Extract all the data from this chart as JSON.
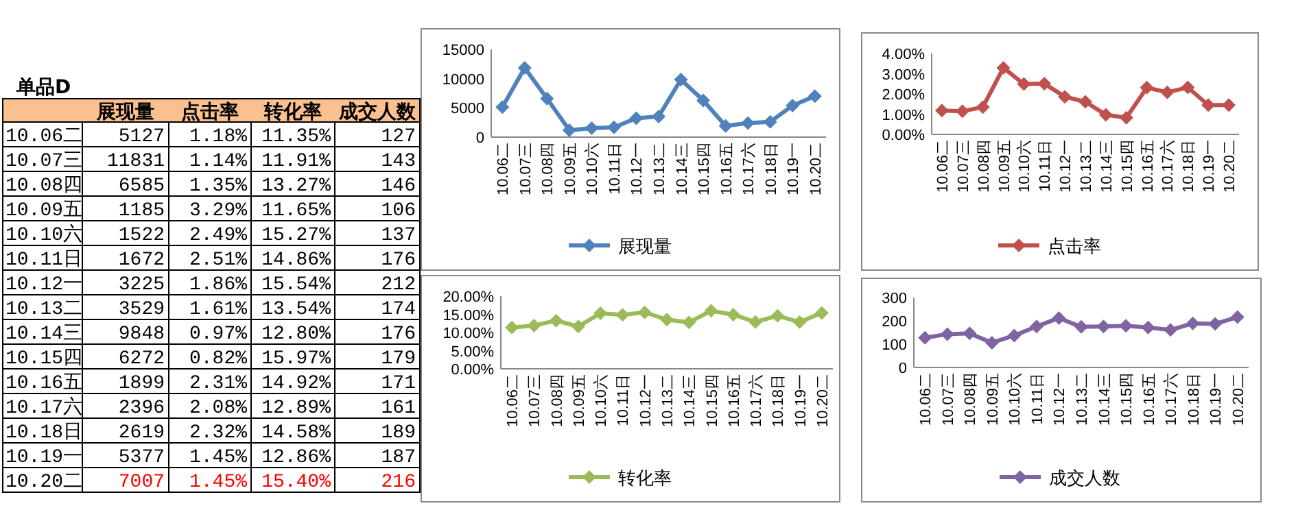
{
  "chart_data": [
    {
      "type": "heatmap",
      "title": "单品D",
      "categories": [
        "展现量",
        "点击率",
        "转化率",
        "成交人数"
      ],
      "y_categories": [
        "10.06二",
        "10.07三",
        "10.08四",
        "10.09五",
        "10.10六",
        "10.11日",
        "10.12一",
        "10.13二",
        "10.14三",
        "10.15四",
        "10.16五",
        "10.17六",
        "10.18日",
        "10.19一",
        "10.20二"
      ],
      "cells": [
        [
          null,
          null,
          null,
          null
        ],
        [
          null,
          null,
          null,
          null
        ],
        [
          null,
          null,
          null,
          null
        ],
        [
          null,
          null,
          null,
          null
        ],
        [
          null,
          null,
          null,
          null
        ],
        [
          null,
          null,
          null,
          null
        ],
        [
          null,
          null,
          null,
          null
        ],
        [
          null,
          null,
          null,
          null
        ],
        [
          null,
          null,
          null,
          null
        ],
        [
          null,
          null,
          null,
          null
        ],
        [
          null,
          null,
          null,
          null
        ],
        [
          null,
          null,
          null,
          null
        ],
        [
          null,
          null,
          null,
          null
        ],
        [
          null,
          null,
          null,
          null
        ],
        [
          null,
          null,
          null,
          null
        ]
      ],
      "cell_labels": [
        [
          "5127",
          "1.18%",
          "11.35%",
          "127"
        ],
        [
          "11831",
          "1.14%",
          "11.91%",
          "143"
        ],
        [
          "6585",
          "1.35%",
          "13.27%",
          "146"
        ],
        [
          "1185",
          "3.29%",
          "11.65%",
          "106"
        ],
        [
          "1522",
          "2.49%",
          "15.27%",
          "137"
        ],
        [
          "1672",
          "2.51%",
          "14.86%",
          "176"
        ],
        [
          "3225",
          "1.86%",
          "15.54%",
          "212"
        ],
        [
          "3529",
          "1.61%",
          "13.54%",
          "174"
        ],
        [
          "9848",
          "0.97%",
          "12.80%",
          "176"
        ],
        [
          "6272",
          "0.82%",
          "15.97%",
          "179"
        ],
        [
          "1899",
          "2.31%",
          "14.92%",
          "171"
        ],
        [
          "2396",
          "2.08%",
          "12.89%",
          "161"
        ],
        [
          "2619",
          "2.32%",
          "14.58%",
          "189"
        ],
        [
          "5377",
          "1.45%",
          "12.86%",
          "187"
        ],
        [
          "7007",
          "1.45%",
          "15.40%",
          "216"
        ]
      ]
    },
    {
      "type": "line",
      "categories": [
        "10.06二",
        "10.07三",
        "10.08四",
        "10.09五",
        "10.10六",
        "10.11日",
        "10.12一",
        "10.13二",
        "10.14三",
        "10.15四",
        "10.16五",
        "10.17六",
        "10.18日",
        "10.19一",
        "10.20二"
      ],
      "ylim": [
        0,
        15000
      ],
      "yticks": [
        0,
        5000,
        10000,
        15000
      ],
      "marker": "diamond",
      "legend": "bottom",
      "series": [
        {
          "name": "展现量",
          "color": "#4f81bd",
          "values": [
            5127,
            11831,
            6585,
            1185,
            1522,
            1672,
            3225,
            3529,
            9848,
            6272,
            1899,
            2396,
            2619,
            5377,
            7007
          ]
        }
      ]
    },
    {
      "type": "line",
      "categories": [
        "10.06二",
        "10.07三",
        "10.08四",
        "10.09五",
        "10.10六",
        "10.11日",
        "10.12一",
        "10.13二",
        "10.14三",
        "10.15四",
        "10.16五",
        "10.17六",
        "10.18日",
        "10.19一",
        "10.20二"
      ],
      "ylim": [
        0,
        4
      ],
      "yticks": [
        {
          "value": 0,
          "label": "0.00%"
        },
        {
          "value": 1,
          "label": "1.00%"
        },
        {
          "value": 2,
          "label": "2.00%"
        },
        {
          "value": 3,
          "label": "3.00%"
        },
        {
          "value": 4,
          "label": "4.00%"
        }
      ],
      "marker": "diamond",
      "legend": "bottom",
      "series": [
        {
          "name": "点击率",
          "color": "#c0504d",
          "values": [
            1.18,
            1.14,
            1.35,
            3.29,
            2.49,
            2.51,
            1.86,
            1.61,
            0.97,
            0.82,
            2.31,
            2.08,
            2.32,
            1.45,
            1.45
          ]
        }
      ]
    },
    {
      "type": "line",
      "categories": [
        "10.06二",
        "10.07三",
        "10.08四",
        "10.09五",
        "10.10六",
        "10.11日",
        "10.12一",
        "10.13二",
        "10.14三",
        "10.15四",
        "10.16五",
        "10.17六",
        "10.18日",
        "10.19一",
        "10.20二"
      ],
      "ylim": [
        0,
        20
      ],
      "yticks": [
        {
          "value": 0,
          "label": "0.00%"
        },
        {
          "value": 5,
          "label": "5.00%"
        },
        {
          "value": 10,
          "label": "10.00%"
        },
        {
          "value": 15,
          "label": "15.00%"
        },
        {
          "value": 20,
          "label": "20.00%"
        }
      ],
      "marker": "diamond",
      "legend": "bottom",
      "series": [
        {
          "name": "转化率",
          "color": "#9bbb59",
          "values": [
            11.35,
            11.91,
            13.27,
            11.65,
            15.27,
            14.86,
            15.54,
            13.54,
            12.8,
            15.97,
            14.92,
            12.89,
            14.58,
            12.86,
            15.4
          ]
        }
      ]
    },
    {
      "type": "line",
      "categories": [
        "10.06二",
        "10.07三",
        "10.08四",
        "10.09五",
        "10.10六",
        "10.11日",
        "10.12一",
        "10.13二",
        "10.14三",
        "10.15四",
        "10.16五",
        "10.17六",
        "10.18日",
        "10.19一",
        "10.20二"
      ],
      "ylim": [
        0,
        300
      ],
      "yticks": [
        0,
        100,
        200,
        300
      ],
      "marker": "diamond",
      "legend": "bottom",
      "series": [
        {
          "name": "成交人数",
          "color": "#8064a2",
          "values": [
            127,
            143,
            146,
            106,
            137,
            176,
            212,
            174,
            176,
            179,
            171,
            161,
            189,
            187,
            216
          ]
        }
      ]
    }
  ]
}
